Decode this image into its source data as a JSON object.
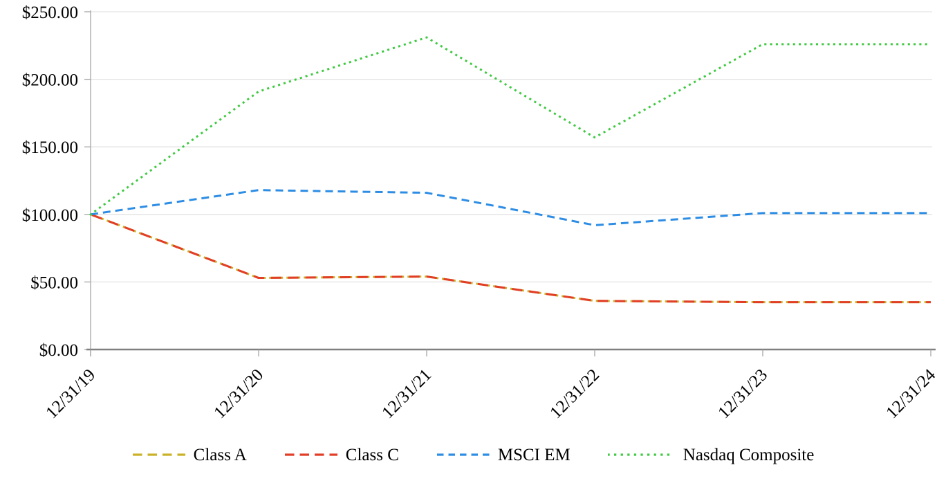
{
  "chart_data": {
    "type": "line",
    "title": "",
    "x_categories": [
      "12/31/19",
      "12/31/20",
      "12/31/21",
      "12/31/22",
      "12/31/23",
      "12/31/24"
    ],
    "y_axis": {
      "min": 0,
      "max": 250,
      "step": 50,
      "tick_labels": [
        "$0.00",
        "$50.00",
        "$100.00",
        "$150.00",
        "$200.00",
        "$250.00"
      ],
      "grid": true
    },
    "series": [
      {
        "name": "Class A",
        "color": "#c9b227",
        "style": "long-dash",
        "values": [
          100.0,
          53.0,
          54.0,
          36.0,
          35.0,
          35.0
        ]
      },
      {
        "name": "Class C",
        "color": "#e23d28",
        "style": "long-dash-over",
        "values": [
          100.0,
          53.0,
          54.0,
          36.0,
          35.0,
          35.0
        ]
      },
      {
        "name": "MSCI EM",
        "color": "#2d8de4",
        "style": "short-dash",
        "values": [
          100.0,
          118.0,
          116.0,
          92.0,
          101.0,
          101.0
        ]
      },
      {
        "name": "Nasdaq Composite",
        "color": "#41c943",
        "style": "dotted",
        "values": [
          100.0,
          191.0,
          231.0,
          157.0,
          226.0,
          226.0
        ]
      }
    ],
    "legend_position": "bottom",
    "colors": {
      "grid": "#e3e3e3",
      "axis": "#7f7f7f",
      "tick": "#a6a6a6",
      "text": "#000000"
    }
  }
}
